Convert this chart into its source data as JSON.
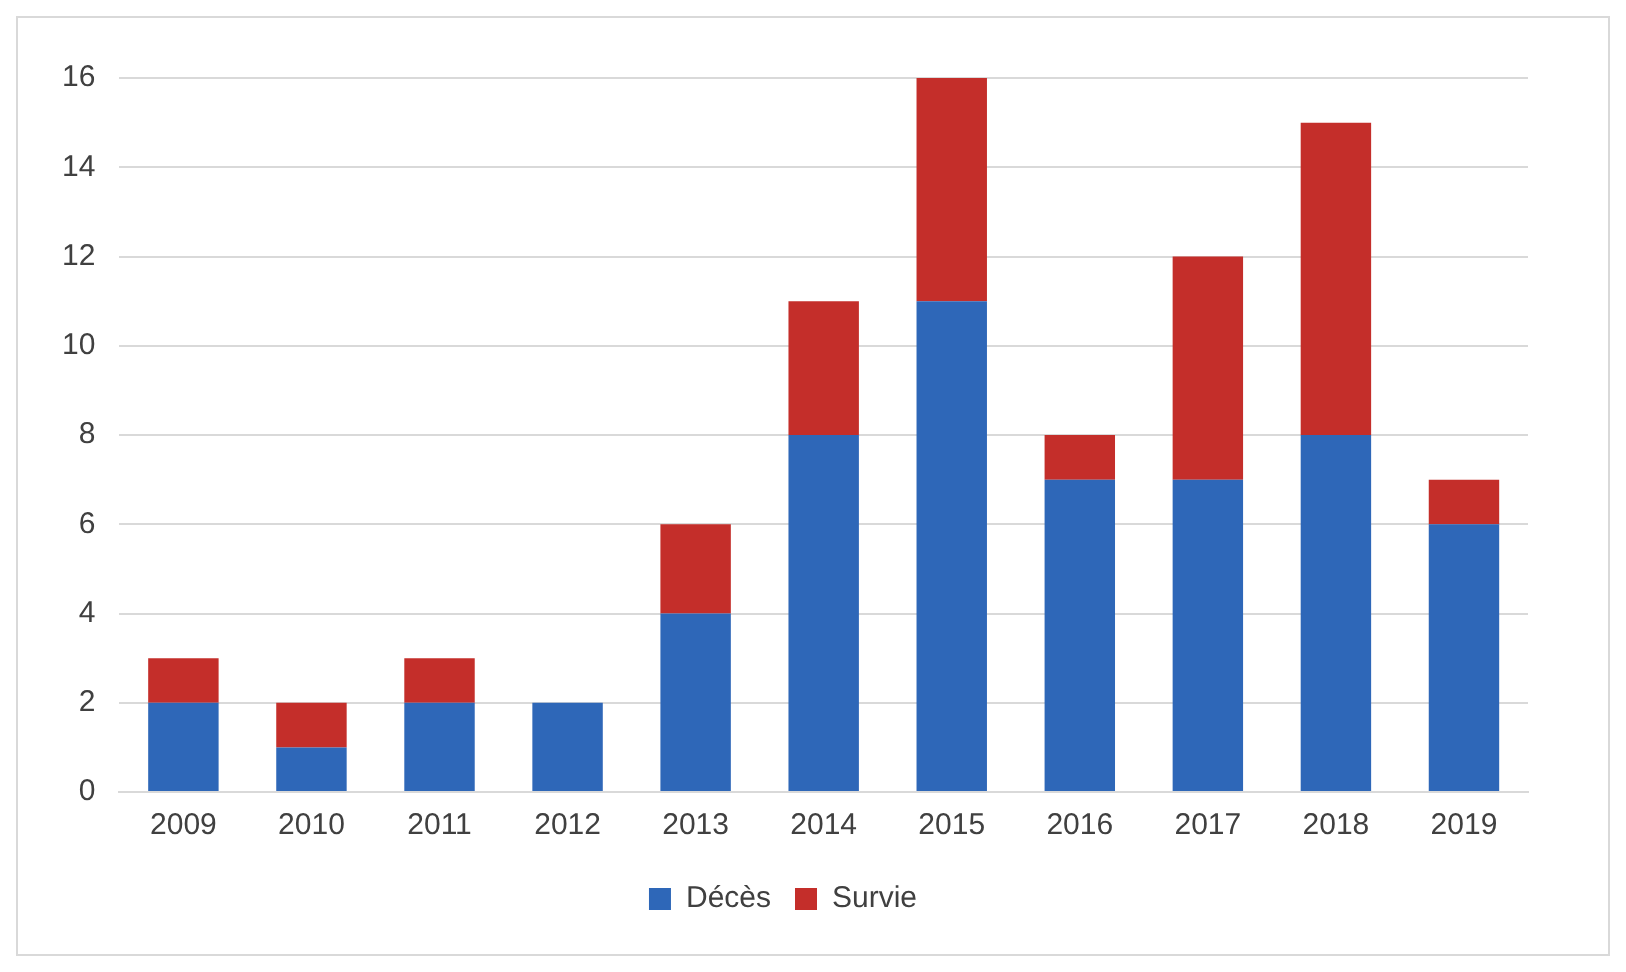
{
  "chart_data": {
    "type": "bar",
    "stacked": true,
    "categories": [
      "2009",
      "2010",
      "2011",
      "2012",
      "2013",
      "2014",
      "2015",
      "2016",
      "2017",
      "2018",
      "2019"
    ],
    "series": [
      {
        "name": "Décès",
        "color": "#2e67b8",
        "values": [
          2,
          1,
          2,
          2,
          4,
          8,
          11,
          7,
          7,
          8,
          6
        ]
      },
      {
        "name": "Survie",
        "color": "#c42e2a",
        "values": [
          1,
          1,
          1,
          0,
          2,
          3,
          5,
          1,
          5,
          7,
          1
        ]
      }
    ],
    "ylim": [
      0,
      16
    ],
    "yticks": [
      0,
      2,
      4,
      6,
      8,
      10,
      12,
      14,
      16
    ],
    "grid": "y",
    "legend": "bottom"
  }
}
